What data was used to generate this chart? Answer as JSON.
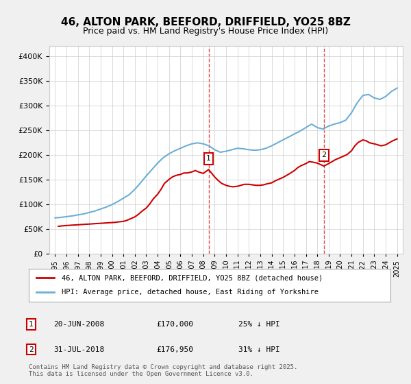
{
  "title": "46, ALTON PARK, BEEFORD, DRIFFIELD, YO25 8BZ",
  "subtitle": "Price paid vs. HM Land Registry's House Price Index (HPI)",
  "legend_line1": "46, ALTON PARK, BEEFORD, DRIFFIELD, YO25 8BZ (detached house)",
  "legend_line2": "HPI: Average price, detached house, East Riding of Yorkshire",
  "footnote": "Contains HM Land Registry data © Crown copyright and database right 2025.\nThis data is licensed under the Open Government Licence v3.0.",
  "sale1_label": "1",
  "sale1_date": "20-JUN-2008",
  "sale1_price": "£170,000",
  "sale1_pct": "25% ↓ HPI",
  "sale2_label": "2",
  "sale2_date": "31-JUL-2018",
  "sale2_price": "£176,950",
  "sale2_pct": "31% ↓ HPI",
  "sale1_year": 2008.47,
  "sale1_value": 170000,
  "sale2_year": 2018.58,
  "sale2_value": 176950,
  "hpi_color": "#6baed6",
  "sale_color": "#cc0000",
  "vline_color": "#cc0000",
  "background_color": "#f0f0f0",
  "plot_bg_color": "#ffffff",
  "ylim": [
    0,
    420000
  ],
  "xlim_start": 1994.5,
  "xlim_end": 2025.5,
  "yticks": [
    0,
    50000,
    100000,
    150000,
    200000,
    250000,
    300000,
    350000,
    400000
  ],
  "hpi_years": [
    1995,
    1995.5,
    1996,
    1996.5,
    1997,
    1997.5,
    1998,
    1998.5,
    1999,
    1999.5,
    2000,
    2000.5,
    2001,
    2001.5,
    2002,
    2002.5,
    2003,
    2003.5,
    2004,
    2004.5,
    2005,
    2005.5,
    2006,
    2006.5,
    2007,
    2007.5,
    2008,
    2008.5,
    2009,
    2009.5,
    2010,
    2010.5,
    2011,
    2011.5,
    2012,
    2012.5,
    2013,
    2013.5,
    2014,
    2014.5,
    2015,
    2015.5,
    2016,
    2016.5,
    2017,
    2017.5,
    2018,
    2018.5,
    2019,
    2019.5,
    2020,
    2020.5,
    2021,
    2021.5,
    2022,
    2022.5,
    2023,
    2023.5,
    2024,
    2024.5,
    2025
  ],
  "hpi_values": [
    72000,
    73000,
    74500,
    76000,
    78000,
    80000,
    83000,
    86000,
    90000,
    94000,
    99000,
    105000,
    112000,
    119000,
    130000,
    143000,
    157000,
    170000,
    183000,
    194000,
    202000,
    208000,
    213000,
    218000,
    222000,
    224000,
    222000,
    218000,
    210000,
    205000,
    207000,
    210000,
    213000,
    212000,
    210000,
    209000,
    210000,
    213000,
    218000,
    224000,
    230000,
    236000,
    242000,
    248000,
    255000,
    262000,
    255000,
    252000,
    258000,
    262000,
    265000,
    270000,
    285000,
    305000,
    320000,
    322000,
    315000,
    312000,
    318000,
    328000,
    335000
  ],
  "sale_years": [
    1995.3,
    1995.5,
    1995.7,
    1996,
    1996.3,
    1996.6,
    1997,
    1997.3,
    1997.6,
    1998,
    1998.3,
    1998.6,
    1999,
    1999.3,
    1999.6,
    2000,
    2000.3,
    2000.6,
    2001,
    2001.3,
    2001.6,
    2002,
    2002.3,
    2002.6,
    2003,
    2003.3,
    2003.6,
    2004,
    2004.3,
    2004.6,
    2005,
    2005.3,
    2005.6,
    2006,
    2006.3,
    2006.6,
    2007,
    2007.3,
    2007.6,
    2008,
    2008.47,
    2009,
    2009.3,
    2009.6,
    2010,
    2010.3,
    2010.6,
    2011,
    2011.3,
    2011.6,
    2012,
    2012.3,
    2012.6,
    2013,
    2013.3,
    2013.6,
    2014,
    2014.3,
    2014.6,
    2015,
    2015.3,
    2015.6,
    2016,
    2016.3,
    2016.6,
    2017,
    2017.3,
    2017.6,
    2018,
    2018.58,
    2019,
    2019.3,
    2019.6,
    2020,
    2020.3,
    2020.6,
    2021,
    2021.3,
    2021.6,
    2022,
    2022.3,
    2022.6,
    2023,
    2023.3,
    2023.6,
    2024,
    2024.3,
    2024.6,
    2025
  ],
  "sale_values": [
    55000,
    55500,
    56000,
    56500,
    57000,
    57500,
    58000,
    58500,
    59000,
    59500,
    60000,
    60500,
    61000,
    61500,
    62000,
    62500,
    63000,
    64000,
    65000,
    67000,
    70000,
    74000,
    79000,
    85000,
    92000,
    100000,
    110000,
    120000,
    130000,
    142000,
    150000,
    155000,
    158000,
    160000,
    163000,
    163000,
    165000,
    168000,
    165000,
    162000,
    170000,
    155000,
    148000,
    142000,
    138000,
    136000,
    135000,
    136000,
    138000,
    140000,
    140000,
    139000,
    138000,
    138000,
    139000,
    141000,
    143000,
    147000,
    150000,
    154000,
    158000,
    162000,
    168000,
    174000,
    178000,
    182000,
    186000,
    185000,
    183000,
    176950,
    182000,
    186000,
    190000,
    194000,
    197000,
    200000,
    208000,
    218000,
    225000,
    230000,
    228000,
    224000,
    222000,
    220000,
    218000,
    220000,
    224000,
    228000,
    232000
  ]
}
